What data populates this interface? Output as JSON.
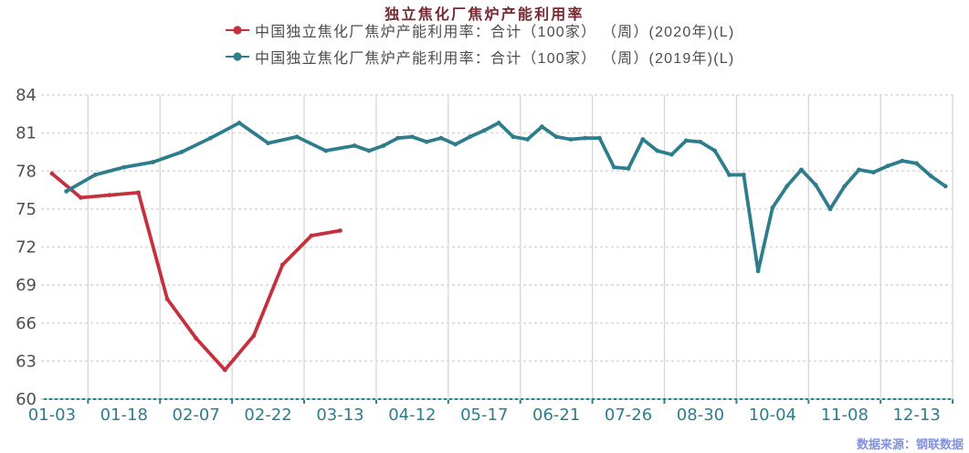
{
  "chart_data": {
    "type": "line",
    "title": "独立焦化厂焦炉产能利用率",
    "source_note": "数据来源：钢联数据",
    "ylim": [
      60,
      84
    ],
    "y_ticks": [
      60,
      63,
      66,
      69,
      72,
      75,
      78,
      81,
      84
    ],
    "x_tick_labels": [
      "01-03",
      "01-18",
      "02-07",
      "02-22",
      "03-13",
      "04-12",
      "05-17",
      "06-21",
      "07-26",
      "08-30",
      "10-04",
      "11-08",
      "12-13"
    ],
    "n_categories": 63,
    "label_every": 5,
    "axis_color": "#2e7d8c",
    "grid_color_vertical": "#d6d6d6",
    "grid_color_horizontal": "#dcdcdc",
    "y_label_color": "#4f4f4f",
    "series": [
      {
        "label": "中国独立焦化厂焦炉产能利用率：合计（100家） （周）(2020年)(L)",
        "color": "#c5303e",
        "category_indices": [
          0,
          2,
          4,
          6,
          8,
          10,
          12,
          14,
          16,
          18,
          20
        ],
        "dates": [
          "01-03",
          "01-10",
          "01-17",
          "01-24",
          "01-31",
          "02-07",
          "02-14",
          "02-21",
          "02-28",
          "03-06",
          "03-13"
        ],
        "values": [
          77.8,
          75.9,
          76.1,
          76.3,
          67.9,
          64.8,
          62.3,
          65.0,
          70.6,
          72.9,
          73.3
        ]
      },
      {
        "label": "中国独立焦化厂焦炉产能利用率：合计（100家） （周）(2019年)(L)",
        "color": "#2e7d8c",
        "category_indices": [
          1,
          3,
          5,
          7,
          9,
          11,
          13,
          15,
          17,
          19,
          21,
          22,
          23,
          24,
          25,
          26,
          27,
          28,
          29,
          30,
          31,
          32,
          33,
          34,
          35,
          36,
          37,
          38,
          39,
          40,
          41,
          42,
          43,
          44,
          45,
          46,
          47,
          48,
          49,
          50,
          51,
          52,
          53,
          54,
          55,
          56,
          57,
          58,
          59,
          60,
          61,
          62
        ],
        "dates": [
          "01-04",
          "01-11",
          "01-18",
          "01-25",
          "02-01",
          "02-08",
          "02-15",
          "02-22",
          "03-01",
          "03-08",
          "03-15",
          "03-22",
          "03-29",
          "04-05",
          "04-12",
          "04-19",
          "04-26",
          "05-03",
          "05-10",
          "05-17",
          "05-24",
          "05-31",
          "06-07",
          "06-14",
          "06-21",
          "06-28",
          "07-05",
          "07-12",
          "07-19",
          "07-26",
          "08-02",
          "08-09",
          "08-16",
          "08-23",
          "08-30",
          "09-06",
          "09-13",
          "09-20",
          "09-27",
          "10-04",
          "10-11",
          "10-18",
          "10-25",
          "11-01",
          "11-08",
          "11-15",
          "11-22",
          "11-29",
          "12-06",
          "12-13",
          "12-20",
          "12-27"
        ],
        "values": [
          76.4,
          77.7,
          78.3,
          78.7,
          79.5,
          80.6,
          81.8,
          80.2,
          80.7,
          79.6,
          80.0,
          79.6,
          80.0,
          80.6,
          80.7,
          80.3,
          80.6,
          80.1,
          80.7,
          81.2,
          81.8,
          80.7,
          80.5,
          81.5,
          80.7,
          80.5,
          80.6,
          80.6,
          78.3,
          78.2,
          80.5,
          79.6,
          79.3,
          80.4,
          80.3,
          79.6,
          77.7,
          77.7,
          70.1,
          75.1,
          76.8,
          78.1,
          76.9,
          75.0,
          76.8,
          78.1,
          77.9,
          78.4,
          78.8,
          78.6,
          77.6,
          76.8
        ]
      }
    ]
  }
}
